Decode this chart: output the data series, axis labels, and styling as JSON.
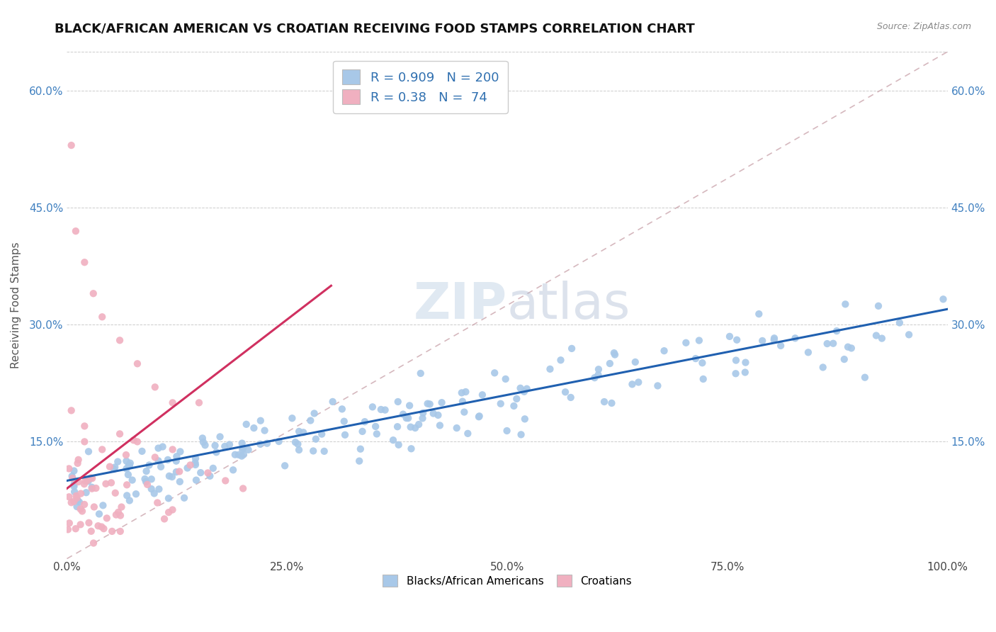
{
  "title": "BLACK/AFRICAN AMERICAN VS CROATIAN RECEIVING FOOD STAMPS CORRELATION CHART",
  "source": "Source: ZipAtlas.com",
  "ylabel": "Receiving Food Stamps",
  "blue_R": 0.909,
  "blue_N": 200,
  "pink_R": 0.38,
  "pink_N": 74,
  "blue_color": "#a8c8e8",
  "pink_color": "#f0b0c0",
  "blue_line_color": "#2060b0",
  "pink_line_color": "#d03060",
  "diagonal_color": "#c8a0a8",
  "watermark_zip": "ZIP",
  "watermark_atlas": "atlas",
  "xlim": [
    0.0,
    1.0
  ],
  "ylim": [
    0.0,
    0.65
  ],
  "xticks": [
    0.0,
    0.25,
    0.5,
    0.75,
    1.0
  ],
  "xtick_labels": [
    "0.0%",
    "25.0%",
    "50.0%",
    "75.0%",
    "100.0%"
  ],
  "yticks": [
    0.0,
    0.15,
    0.3,
    0.45,
    0.6
  ],
  "ytick_labels": [
    "",
    "15.0%",
    "30.0%",
    "45.0%",
    "60.0%"
  ],
  "right_ytick_labels": [
    "",
    "15.0%",
    "30.0%",
    "45.0%",
    "60.0%"
  ],
  "legend_labels": [
    "Blacks/African Americans",
    "Croatians"
  ],
  "grid_color": "#cccccc",
  "background_color": "#ffffff",
  "title_fontsize": 13,
  "axis_label_fontsize": 11,
  "tick_fontsize": 11,
  "legend_fontsize": 11
}
